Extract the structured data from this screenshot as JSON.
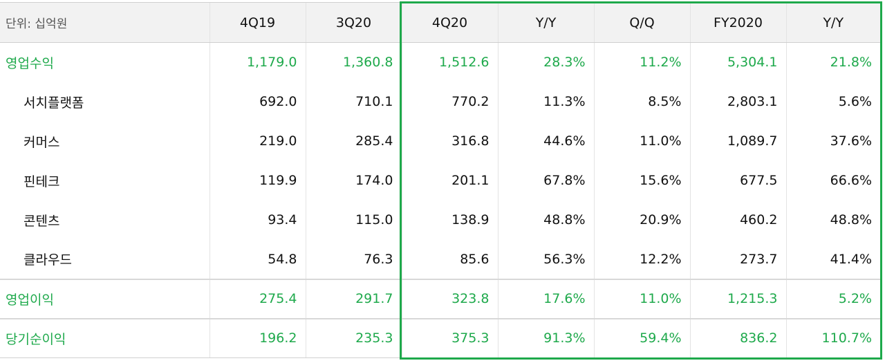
{
  "table": {
    "unit_label": "단위: 십억원",
    "headers": [
      "4Q19",
      "3Q20",
      "4Q20",
      "Y/Y",
      "Q/Q",
      "FY2020",
      "Y/Y"
    ],
    "rows": [
      {
        "label": "영업수익",
        "values": [
          "1,179.0",
          "1,360.8",
          "1,512.6",
          "28.3%",
          "11.2%",
          "5,304.1",
          "21.8%"
        ]
      },
      {
        "label": "서치플랫폼",
        "values": [
          "692.0",
          "710.1",
          "770.2",
          "11.3%",
          "8.5%",
          "2,803.1",
          "5.6%"
        ]
      },
      {
        "label": "커머스",
        "values": [
          "219.0",
          "285.4",
          "316.8",
          "44.6%",
          "11.0%",
          "1,089.7",
          "37.6%"
        ]
      },
      {
        "label": "핀테크",
        "values": [
          "119.9",
          "174.0",
          "201.1",
          "67.8%",
          "15.6%",
          "677.5",
          "66.6%"
        ]
      },
      {
        "label": "콘텐츠",
        "values": [
          "93.4",
          "115.0",
          "138.9",
          "48.8%",
          "20.9%",
          "460.2",
          "48.8%"
        ]
      },
      {
        "label": "클라우드",
        "values": [
          "54.8",
          "76.3",
          "85.6",
          "56.3%",
          "12.2%",
          "273.7",
          "41.4%"
        ]
      },
      {
        "label": "영업이익",
        "values": [
          "275.4",
          "291.7",
          "323.8",
          "17.6%",
          "11.0%",
          "1,215.3",
          "5.2%"
        ]
      },
      {
        "label": "당기순이익",
        "values": [
          "196.2",
          "235.3",
          "375.3",
          "91.3%",
          "59.4%",
          "836.2",
          "110.7%"
        ]
      }
    ]
  },
  "colors": {
    "accent_green": "#1ea94b",
    "header_bg": "#f2f2f2",
    "text": "#111111"
  }
}
